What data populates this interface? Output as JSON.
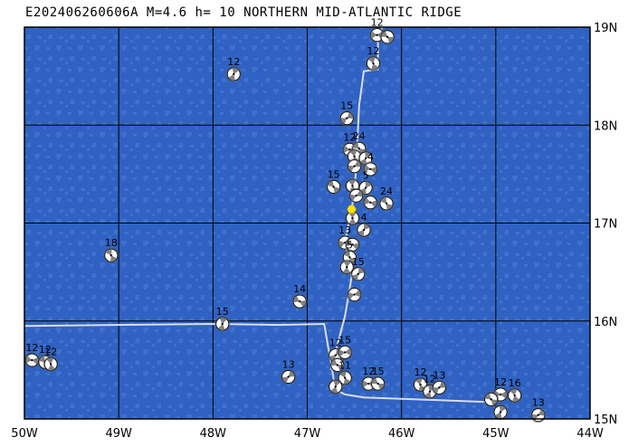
{
  "map": {
    "title": "E202406260606A  M=4.6  h= 10  NORTHERN MID-ATLANTIC RIDGE",
    "lon_range": [
      -50,
      -44
    ],
    "lat_range": [
      15,
      19
    ],
    "lon_ticks": [
      {
        "value": -50,
        "label": "50W"
      },
      {
        "value": -49,
        "label": "49W"
      },
      {
        "value": -48,
        "label": "48W"
      },
      {
        "value": -47,
        "label": "47W"
      },
      {
        "value": -46,
        "label": "46W"
      },
      {
        "value": -45,
        "label": "45W"
      },
      {
        "value": -44,
        "label": "44W"
      }
    ],
    "lat_ticks": [
      {
        "value": 19,
        "label": "19N"
      },
      {
        "value": 18,
        "label": "18N"
      },
      {
        "value": 17,
        "label": "17N"
      },
      {
        "value": 16,
        "label": "16N"
      },
      {
        "value": 15,
        "label": "15N"
      }
    ],
    "colors": {
      "ocean": "#2f62c2",
      "ocean_shallow": "#4a7ed4",
      "grid": "#000000",
      "plate_boundary": "#dcdcf0",
      "event": "#ffe400",
      "mechanism_fill": "#808080"
    },
    "event_location": {
      "lon": -46.53,
      "lat": 17.14
    },
    "plate_boundary": [
      [
        -50.0,
        15.95
      ],
      [
        -48.0,
        15.97
      ],
      [
        -47.3,
        15.96
      ],
      [
        -46.82,
        15.97
      ],
      [
        -46.7,
        15.3
      ],
      [
        -46.6,
        15.25
      ],
      [
        -46.4,
        15.22
      ],
      [
        -45.0,
        15.17
      ],
      null,
      [
        -46.75,
        15.5
      ],
      [
        -46.6,
        16.05
      ],
      [
        -46.53,
        16.45
      ],
      [
        -46.6,
        16.8
      ],
      [
        -46.5,
        17.3
      ],
      [
        -46.48,
        17.6
      ],
      [
        -46.45,
        18.2
      ],
      [
        -46.4,
        18.55
      ],
      [
        -46.25,
        18.57
      ],
      [
        -46.25,
        18.9
      ],
      [
        -46.18,
        19.05
      ]
    ],
    "mechanisms": [
      {
        "lon": -46.26,
        "lat": 18.92,
        "label": "12"
      },
      {
        "lon": -46.15,
        "lat": 18.9,
        "label": ""
      },
      {
        "lon": -46.3,
        "lat": 18.63,
        "label": "12"
      },
      {
        "lon": -47.78,
        "lat": 18.52,
        "label": "12"
      },
      {
        "lon": -46.58,
        "lat": 18.07,
        "label": "15"
      },
      {
        "lon": -46.55,
        "lat": 17.75,
        "label": "12"
      },
      {
        "lon": -46.45,
        "lat": 17.76,
        "label": "24"
      },
      {
        "lon": -46.5,
        "lat": 17.68,
        "label": ""
      },
      {
        "lon": -46.38,
        "lat": 17.66,
        "label": ""
      },
      {
        "lon": -46.5,
        "lat": 17.58,
        "label": ""
      },
      {
        "lon": -46.33,
        "lat": 17.55,
        "label": "4"
      },
      {
        "lon": -46.72,
        "lat": 17.37,
        "label": "15"
      },
      {
        "lon": -46.52,
        "lat": 17.38,
        "label": ""
      },
      {
        "lon": -46.38,
        "lat": 17.36,
        "label": "5"
      },
      {
        "lon": -46.48,
        "lat": 17.28,
        "label": ""
      },
      {
        "lon": -46.33,
        "lat": 17.21,
        "label": ""
      },
      {
        "lon": -46.16,
        "lat": 17.2,
        "label": "24"
      },
      {
        "lon": -46.52,
        "lat": 17.05,
        "label": ""
      },
      {
        "lon": -46.4,
        "lat": 16.93,
        "label": "4"
      },
      {
        "lon": -46.6,
        "lat": 16.8,
        "label": "13"
      },
      {
        "lon": -46.52,
        "lat": 16.78,
        "label": ""
      },
      {
        "lon": -46.55,
        "lat": 16.65,
        "label": "5"
      },
      {
        "lon": -46.58,
        "lat": 16.55,
        "label": ""
      },
      {
        "lon": -46.46,
        "lat": 16.48,
        "label": "15"
      },
      {
        "lon": -46.5,
        "lat": 16.27,
        "label": ""
      },
      {
        "lon": -47.08,
        "lat": 16.2,
        "label": "14"
      },
      {
        "lon": -49.08,
        "lat": 16.67,
        "label": "18"
      },
      {
        "lon": -47.9,
        "lat": 15.97,
        "label": "15"
      },
      {
        "lon": -46.7,
        "lat": 15.65,
        "label": "12"
      },
      {
        "lon": -46.6,
        "lat": 15.68,
        "label": "15"
      },
      {
        "lon": -46.68,
        "lat": 15.55,
        "label": ""
      },
      {
        "lon": -46.6,
        "lat": 15.42,
        "label": "11"
      },
      {
        "lon": -46.7,
        "lat": 15.33,
        "label": ""
      },
      {
        "lon": -47.2,
        "lat": 15.43,
        "label": "13"
      },
      {
        "lon": -46.35,
        "lat": 15.36,
        "label": "12"
      },
      {
        "lon": -46.25,
        "lat": 15.36,
        "label": "15"
      },
      {
        "lon": -45.8,
        "lat": 15.35,
        "label": "12"
      },
      {
        "lon": -45.7,
        "lat": 15.28,
        "label": "12"
      },
      {
        "lon": -45.6,
        "lat": 15.32,
        "label": "13"
      },
      {
        "lon": -44.95,
        "lat": 15.25,
        "label": "12"
      },
      {
        "lon": -45.05,
        "lat": 15.2,
        "label": ""
      },
      {
        "lon": -44.8,
        "lat": 15.24,
        "label": "16"
      },
      {
        "lon": -44.95,
        "lat": 15.07,
        "label": ""
      },
      {
        "lon": -44.55,
        "lat": 15.04,
        "label": "13"
      },
      {
        "lon": -49.92,
        "lat": 15.6,
        "label": "12"
      },
      {
        "lon": -49.78,
        "lat": 15.58,
        "label": "12"
      },
      {
        "lon": -49.72,
        "lat": 15.56,
        "label": "12"
      }
    ]
  }
}
